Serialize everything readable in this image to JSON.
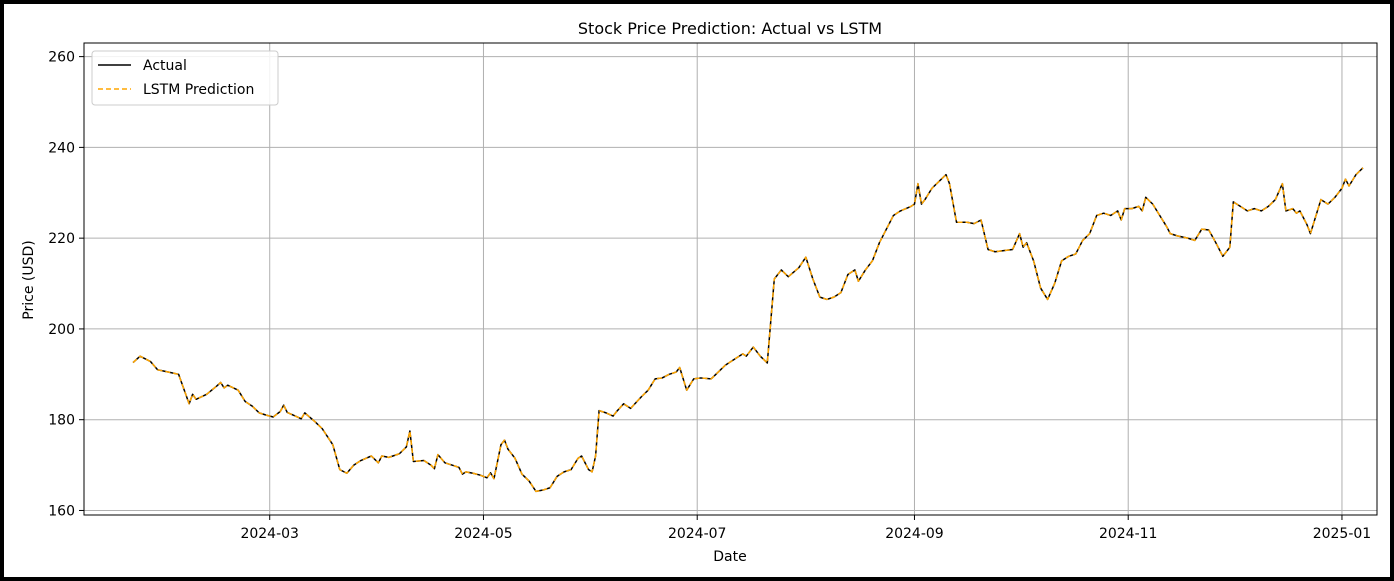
{
  "chart_data": {
    "type": "line",
    "title": "Stock Price Prediction: Actual vs LSTM",
    "xlabel": "Date",
    "ylabel": "Price (USD)",
    "xlim": [
      "2024-01-08",
      "2025-01-11"
    ],
    "ylim": [
      159,
      263
    ],
    "x_ticks": [
      "2024-03",
      "2024-05",
      "2024-07",
      "2024-09",
      "2024-11",
      "2025-01"
    ],
    "x_tick_dates": [
      "2024-03-01",
      "2024-05-01",
      "2024-07-01",
      "2024-09-01",
      "2024-11-01",
      "2025-01-01"
    ],
    "y_ticks": [
      160,
      180,
      200,
      220,
      240,
      260
    ],
    "grid": true,
    "legend": "upper-left",
    "colors": {
      "actual": "#000000",
      "prediction": "#ffa500"
    },
    "series": [
      {
        "name": "Actual",
        "style": "solid",
        "points": [
          [
            "2024-01-22",
            192.6
          ],
          [
            "2024-01-24",
            194.0
          ],
          [
            "2024-01-27",
            192.8
          ],
          [
            "2024-01-29",
            191.0
          ],
          [
            "2024-02-01",
            190.5
          ],
          [
            "2024-02-04",
            190.0
          ],
          [
            "2024-02-07",
            183.5
          ],
          [
            "2024-02-08",
            185.6
          ],
          [
            "2024-02-09",
            184.5
          ],
          [
            "2024-02-12",
            185.6
          ],
          [
            "2024-02-15",
            187.5
          ],
          [
            "2024-02-16",
            188.2
          ],
          [
            "2024-02-17",
            187.0
          ],
          [
            "2024-02-18",
            187.6
          ],
          [
            "2024-02-21",
            186.5
          ],
          [
            "2024-02-23",
            184.0
          ],
          [
            "2024-02-25",
            183.0
          ],
          [
            "2024-02-27",
            181.5
          ],
          [
            "2024-02-29",
            181.0
          ],
          [
            "2024-03-02",
            180.6
          ],
          [
            "2024-03-04",
            181.8
          ],
          [
            "2024-03-05",
            183.2
          ],
          [
            "2024-03-06",
            181.6
          ],
          [
            "2024-03-08",
            180.9
          ],
          [
            "2024-03-10",
            180.2
          ],
          [
            "2024-03-11",
            181.5
          ],
          [
            "2024-03-14",
            179.5
          ],
          [
            "2024-03-16",
            178.0
          ],
          [
            "2024-03-19",
            174.5
          ],
          [
            "2024-03-21",
            169.0
          ],
          [
            "2024-03-23",
            168.2
          ],
          [
            "2024-03-25",
            170.0
          ],
          [
            "2024-03-27",
            171.0
          ],
          [
            "2024-03-30",
            172.0
          ],
          [
            "2024-04-01",
            170.5
          ],
          [
            "2024-04-02",
            172.0
          ],
          [
            "2024-04-04",
            171.7
          ],
          [
            "2024-04-07",
            172.5
          ],
          [
            "2024-04-09",
            174.0
          ],
          [
            "2024-04-10",
            177.5
          ],
          [
            "2024-04-11",
            170.8
          ],
          [
            "2024-04-14",
            171.0
          ],
          [
            "2024-04-16",
            170.0
          ],
          [
            "2024-04-17",
            169.2
          ],
          [
            "2024-04-18",
            172.3
          ],
          [
            "2024-04-20",
            170.5
          ],
          [
            "2024-04-22",
            170.0
          ],
          [
            "2024-04-24",
            169.5
          ],
          [
            "2024-04-25",
            168.0
          ],
          [
            "2024-04-26",
            168.5
          ],
          [
            "2024-04-28",
            168.2
          ],
          [
            "2024-04-30",
            167.8
          ],
          [
            "2024-05-02",
            167.2
          ],
          [
            "2024-05-03",
            168.3
          ],
          [
            "2024-05-04",
            167.0
          ],
          [
            "2024-05-06",
            174.5
          ],
          [
            "2024-05-07",
            175.5
          ],
          [
            "2024-05-08",
            173.5
          ],
          [
            "2024-05-10",
            171.5
          ],
          [
            "2024-05-12",
            168.0
          ],
          [
            "2024-05-14",
            166.5
          ],
          [
            "2024-05-16",
            164.2
          ],
          [
            "2024-05-18",
            164.5
          ],
          [
            "2024-05-20",
            165.0
          ],
          [
            "2024-05-22",
            167.5
          ],
          [
            "2024-05-24",
            168.5
          ],
          [
            "2024-05-26",
            169.0
          ],
          [
            "2024-05-28",
            171.5
          ],
          [
            "2024-05-29",
            172.0
          ],
          [
            "2024-05-31",
            169.0
          ],
          [
            "2024-06-01",
            168.5
          ],
          [
            "2024-06-02",
            172.0
          ],
          [
            "2024-06-03",
            182.0
          ],
          [
            "2024-06-05",
            181.5
          ],
          [
            "2024-06-07",
            180.8
          ],
          [
            "2024-06-08",
            181.8
          ],
          [
            "2024-06-10",
            183.5
          ],
          [
            "2024-06-12",
            182.5
          ],
          [
            "2024-06-15",
            185.0
          ],
          [
            "2024-06-17",
            186.5
          ],
          [
            "2024-06-19",
            189.0
          ],
          [
            "2024-06-21",
            189.2
          ],
          [
            "2024-06-23",
            190.0
          ],
          [
            "2024-06-25",
            190.5
          ],
          [
            "2024-06-26",
            191.5
          ],
          [
            "2024-06-28",
            186.5
          ],
          [
            "2024-06-30",
            189.0
          ],
          [
            "2024-07-02",
            189.2
          ],
          [
            "2024-07-05",
            189.0
          ],
          [
            "2024-07-07",
            190.5
          ],
          [
            "2024-07-09",
            192.0
          ],
          [
            "2024-07-12",
            193.5
          ],
          [
            "2024-07-14",
            194.5
          ],
          [
            "2024-07-15",
            194.0
          ],
          [
            "2024-07-17",
            196.0
          ],
          [
            "2024-07-19",
            194.0
          ],
          [
            "2024-07-21",
            192.5
          ],
          [
            "2024-07-23",
            211.0
          ],
          [
            "2024-07-25",
            213.0
          ],
          [
            "2024-07-27",
            211.5
          ],
          [
            "2024-07-30",
            213.5
          ],
          [
            "2024-08-01",
            215.8
          ],
          [
            "2024-08-03",
            211.0
          ],
          [
            "2024-08-05",
            207.0
          ],
          [
            "2024-08-07",
            206.5
          ],
          [
            "2024-08-09",
            207.0
          ],
          [
            "2024-08-11",
            208.0
          ],
          [
            "2024-08-13",
            212.0
          ],
          [
            "2024-08-15",
            213.0
          ],
          [
            "2024-08-16",
            210.5
          ],
          [
            "2024-08-18",
            213.0
          ],
          [
            "2024-08-20",
            215.0
          ],
          [
            "2024-08-22",
            219.0
          ],
          [
            "2024-08-24",
            222.0
          ],
          [
            "2024-08-26",
            225.0
          ],
          [
            "2024-08-28",
            226.0
          ],
          [
            "2024-08-31",
            227.0
          ],
          [
            "2024-09-01",
            227.5
          ],
          [
            "2024-09-02",
            232.0
          ],
          [
            "2024-09-03",
            227.5
          ],
          [
            "2024-09-04",
            228.5
          ],
          [
            "2024-09-06",
            231.0
          ],
          [
            "2024-09-08",
            232.5
          ],
          [
            "2024-09-10",
            234.0
          ],
          [
            "2024-09-11",
            232.0
          ],
          [
            "2024-09-13",
            223.5
          ],
          [
            "2024-09-16",
            223.5
          ],
          [
            "2024-09-18",
            223.2
          ],
          [
            "2024-09-20",
            224.0
          ],
          [
            "2024-09-22",
            217.5
          ],
          [
            "2024-09-24",
            217.0
          ],
          [
            "2024-09-27",
            217.3
          ],
          [
            "2024-09-29",
            217.5
          ],
          [
            "2024-10-01",
            221.0
          ],
          [
            "2024-10-02",
            218.0
          ],
          [
            "2024-10-03",
            219.0
          ],
          [
            "2024-10-05",
            215.0
          ],
          [
            "2024-10-07",
            209.0
          ],
          [
            "2024-10-09",
            206.5
          ],
          [
            "2024-10-11",
            210.0
          ],
          [
            "2024-10-13",
            215.0
          ],
          [
            "2024-10-15",
            216.0
          ],
          [
            "2024-10-17",
            216.5
          ],
          [
            "2024-10-19",
            219.5
          ],
          [
            "2024-10-21",
            221.0
          ],
          [
            "2024-10-23",
            225.0
          ],
          [
            "2024-10-25",
            225.5
          ],
          [
            "2024-10-27",
            225.0
          ],
          [
            "2024-10-29",
            226.0
          ],
          [
            "2024-10-30",
            224.0
          ],
          [
            "2024-10-31",
            226.5
          ],
          [
            "2024-11-02",
            226.5
          ],
          [
            "2024-11-04",
            227.0
          ],
          [
            "2024-11-05",
            226.0
          ],
          [
            "2024-11-06",
            229.0
          ],
          [
            "2024-11-08",
            227.5
          ],
          [
            "2024-11-10",
            225.0
          ],
          [
            "2024-11-12",
            222.5
          ],
          [
            "2024-11-13",
            221.0
          ],
          [
            "2024-11-15",
            220.5
          ],
          [
            "2024-11-18",
            220.0
          ],
          [
            "2024-11-20",
            219.5
          ],
          [
            "2024-11-22",
            222.0
          ],
          [
            "2024-11-24",
            221.8
          ],
          [
            "2024-11-26",
            219.0
          ],
          [
            "2024-11-28",
            216.0
          ],
          [
            "2024-11-30",
            218.0
          ],
          [
            "2024-12-01",
            228.0
          ],
          [
            "2024-12-03",
            227.0
          ],
          [
            "2024-12-05",
            226.0
          ],
          [
            "2024-12-07",
            226.5
          ],
          [
            "2024-12-09",
            226.0
          ],
          [
            "2024-12-11",
            227.0
          ],
          [
            "2024-12-13",
            228.5
          ],
          [
            "2024-12-15",
            232.0
          ],
          [
            "2024-12-16",
            226.0
          ],
          [
            "2024-12-18",
            226.5
          ],
          [
            "2024-12-19",
            225.5
          ],
          [
            "2024-12-20",
            226.0
          ],
          [
            "2024-12-22",
            223.0
          ],
          [
            "2024-12-23",
            221.0
          ],
          [
            "2024-12-26",
            228.5
          ],
          [
            "2024-12-28",
            227.5
          ],
          [
            "2024-12-30",
            229.0
          ],
          [
            "2025-01-01",
            231.0
          ],
          [
            "2025-01-02",
            233.0
          ],
          [
            "2025-01-03",
            231.5
          ],
          [
            "2025-01-05",
            234.0
          ],
          [
            "2025-01-07",
            235.5
          ]
        ]
      },
      {
        "name": "LSTM Prediction",
        "style": "dashed"
      }
    ]
  }
}
